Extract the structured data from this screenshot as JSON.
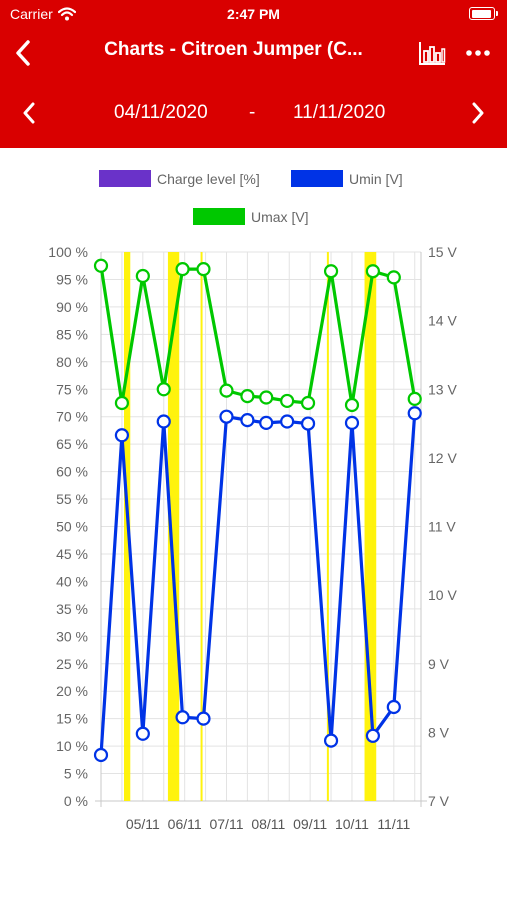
{
  "status_bar": {
    "carrier": "Carrier",
    "time": "2:47 PM",
    "battery_level": 0.95
  },
  "navbar": {
    "title": "Charts - Citroen Jumper (C...",
    "back_icon": "chevron-left-icon",
    "chart_icon": "bar-chart-icon",
    "more_icon": "more-horizontal-icon"
  },
  "date_range": {
    "start": "04/11/2020",
    "separator": "-",
    "end": "11/11/2020",
    "prev_icon": "chevron-left-icon",
    "next_icon": "chevron-right-icon"
  },
  "colors": {
    "brand": "#d90000",
    "charge": "#6a32c9",
    "umin": "#0033e6",
    "umax": "#00c800",
    "event": "#fff200"
  },
  "chart_data": {
    "type": "line",
    "legend": [
      {
        "label": "Charge level [%]",
        "color": "#6a32c9"
      },
      {
        "label": "Umin [V]",
        "color": "#0033e6"
      },
      {
        "label": "Umax [V]",
        "color": "#00c800"
      }
    ],
    "y_left": {
      "min": 0,
      "max": 100,
      "step": 5,
      "unit": "%",
      "ticks": [
        "0 %",
        "5 %",
        "10 %",
        "15 %",
        "20 %",
        "25 %",
        "30 %",
        "35 %",
        "40 %",
        "45 %",
        "50 %",
        "55 %",
        "60 %",
        "65 %",
        "70 %",
        "75 %",
        "80 %",
        "85 %",
        "90 %",
        "95 %",
        "100 %"
      ]
    },
    "y_right": {
      "min": 7,
      "max": 15,
      "ticks": [
        "7 V",
        "8 V",
        "9 V",
        "10 V",
        "11 V",
        "12 V",
        "13 V",
        "14 V",
        "15 V"
      ]
    },
    "x_ticks": [
      "05/11",
      "06/11",
      "07/11",
      "08/11",
      "09/11",
      "10/11",
      "11/11"
    ],
    "x_range_days": [
      4.0,
      11.65
    ],
    "grid": true,
    "series": [
      {
        "name": "Umin [V]",
        "color": "#0033e6",
        "points": [
          [
            4.0,
            7.67
          ],
          [
            4.5,
            12.33
          ],
          [
            5.0,
            7.98
          ],
          [
            5.5,
            12.53
          ],
          [
            5.95,
            8.22
          ],
          [
            6.45,
            8.2
          ],
          [
            7.0,
            12.6
          ],
          [
            7.5,
            12.55
          ],
          [
            7.95,
            12.51
          ],
          [
            8.45,
            12.53
          ],
          [
            8.95,
            12.5
          ],
          [
            9.5,
            7.88
          ],
          [
            10.0,
            12.51
          ],
          [
            10.5,
            7.95
          ],
          [
            11.0,
            8.37
          ],
          [
            11.5,
            12.65
          ]
        ]
      },
      {
        "name": "Umax [V]",
        "color": "#00c800",
        "points": [
          [
            4.0,
            14.8
          ],
          [
            4.5,
            12.8
          ],
          [
            5.0,
            14.65
          ],
          [
            5.5,
            13.0
          ],
          [
            5.95,
            14.75
          ],
          [
            6.45,
            14.75
          ],
          [
            7.0,
            12.98
          ],
          [
            7.5,
            12.9
          ],
          [
            7.95,
            12.88
          ],
          [
            8.45,
            12.83
          ],
          [
            8.95,
            12.8
          ],
          [
            9.5,
            14.72
          ],
          [
            10.0,
            12.77
          ],
          [
            10.5,
            14.72
          ],
          [
            11.0,
            14.63
          ],
          [
            11.5,
            12.86
          ]
        ]
      }
    ],
    "event_bands": [
      [
        4.55,
        4.7
      ],
      [
        5.6,
        5.87
      ],
      [
        6.38,
        6.42
      ],
      [
        9.4,
        9.43
      ],
      [
        10.3,
        10.58
      ]
    ]
  }
}
